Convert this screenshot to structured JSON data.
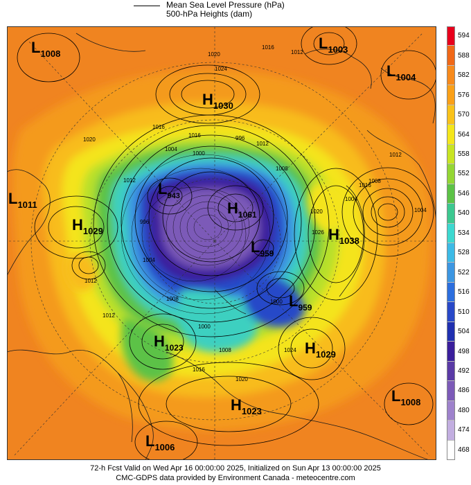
{
  "legend": {
    "line_label_1": "Mean Sea Level Pressure (hPa)",
    "line_label_2": "500-hPa Heights (dam)"
  },
  "colorbar": {
    "levels": [
      "594",
      "588",
      "582",
      "576",
      "570",
      "564",
      "558",
      "552",
      "546",
      "540",
      "534",
      "528",
      "522",
      "516",
      "510",
      "504",
      "498",
      "492",
      "486",
      "480",
      "474",
      "468"
    ],
    "colors": [
      "#e8001c",
      "#f06818",
      "#f78a1c",
      "#faa018",
      "#f9c21a",
      "#f4e61c",
      "#c8e424",
      "#94d634",
      "#5cc246",
      "#3cc890",
      "#3cd8d0",
      "#3cbae6",
      "#3c96e2",
      "#2c6ede",
      "#2848c8",
      "#2030b0",
      "#3a1e9c",
      "#5a3aa6",
      "#7c5ab8",
      "#9e82cc",
      "#c2aee0",
      "#ffffff"
    ]
  },
  "pressure_centers": [
    {
      "type": "L",
      "value": "1008"
    },
    {
      "type": "L",
      "value": "1003"
    },
    {
      "type": "L",
      "value": "1004"
    },
    {
      "type": "H",
      "value": "1030"
    },
    {
      "type": "L",
      "value": "1011"
    },
    {
      "type": "H",
      "value": "1029"
    },
    {
      "type": "L",
      "value": "943"
    },
    {
      "type": "H",
      "value": "1061"
    },
    {
      "type": "L",
      "value": "959"
    },
    {
      "type": "H",
      "value": "1038"
    },
    {
      "type": "L",
      "value": "959"
    },
    {
      "type": "H",
      "value": "1023"
    },
    {
      "type": "H",
      "value": "1029"
    },
    {
      "type": "H",
      "value": "1023"
    },
    {
      "type": "L",
      "value": "1008"
    },
    {
      "type": "L",
      "value": "1006"
    }
  ],
  "isobar_labels": [
    "1020",
    "1016",
    "1012",
    "1024",
    "1016",
    "1004",
    "1000",
    "996",
    "1012",
    "1020",
    "1016",
    "1008",
    "1012",
    "996",
    "1004",
    "1020",
    "1026",
    "1004",
    "1016",
    "1012",
    "1008",
    "1004",
    "1000",
    "1012",
    "1024",
    "1016",
    "1020",
    "1008",
    "1012",
    "1008",
    "1000"
  ],
  "footer": {
    "line1": "72-h Fcst Valid on Wed Apr 16 00:00:00 2025, Initialized on Sun Apr 13 00:00:00 2025",
    "line2": "CMC-GDPS data provided by Environment Canada - meteocentre.com"
  }
}
